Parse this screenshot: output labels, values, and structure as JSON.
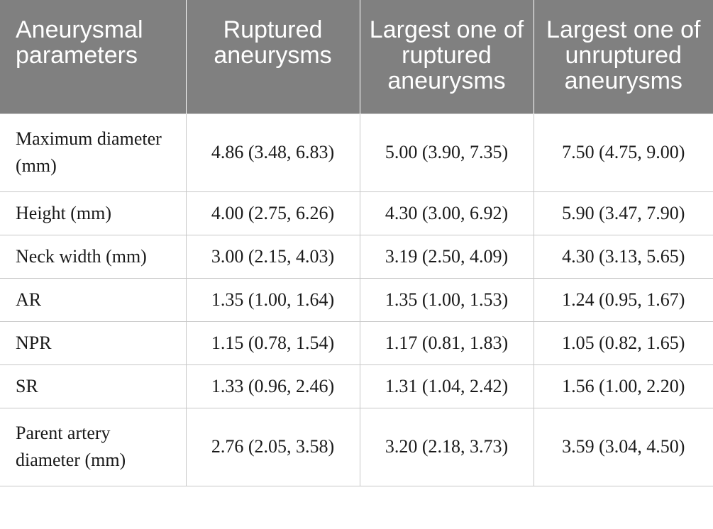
{
  "table": {
    "headers": [
      "Aneurysmal parameters",
      "Ruptured aneurysms",
      "Largest one of ruptured aneurysms",
      "Largest one of unruptured aneurysms"
    ],
    "rows": [
      [
        "Maximum diameter (mm)",
        "4.86 (3.48, 6.83)",
        "5.00 (3.90, 7.35)",
        "7.50 (4.75, 9.00)"
      ],
      [
        "Height (mm)",
        "4.00 (2.75, 6.26)",
        "4.30 (3.00, 6.92)",
        "5.90 (3.47, 7.90)"
      ],
      [
        "Neck width (mm)",
        "3.00 (2.15, 4.03)",
        "3.19 (2.50, 4.09)",
        "4.30 (3.13, 5.65)"
      ],
      [
        "AR",
        "1.35 (1.00, 1.64)",
        "1.35 (1.00, 1.53)",
        "1.24 (0.95, 1.67)"
      ],
      [
        "NPR",
        "1.15 (0.78, 1.54)",
        "1.17 (0.81, 1.83)",
        "1.05 (0.82, 1.65)"
      ],
      [
        "SR",
        "1.33 (0.96, 2.46)",
        "1.31 (1.04, 2.42)",
        "1.56 (1.00, 2.20)"
      ],
      [
        "Parent artery diameter (mm)",
        "2.76 (2.05, 3.58)",
        "3.20 (2.18, 3.73)",
        "3.59 (3.04, 4.50)"
      ]
    ]
  },
  "colors": {
    "header_bg": "#808080",
    "header_text": "#ffffff",
    "grid_line": "#c8c8c8",
    "body_text": "#1a1a1a"
  }
}
